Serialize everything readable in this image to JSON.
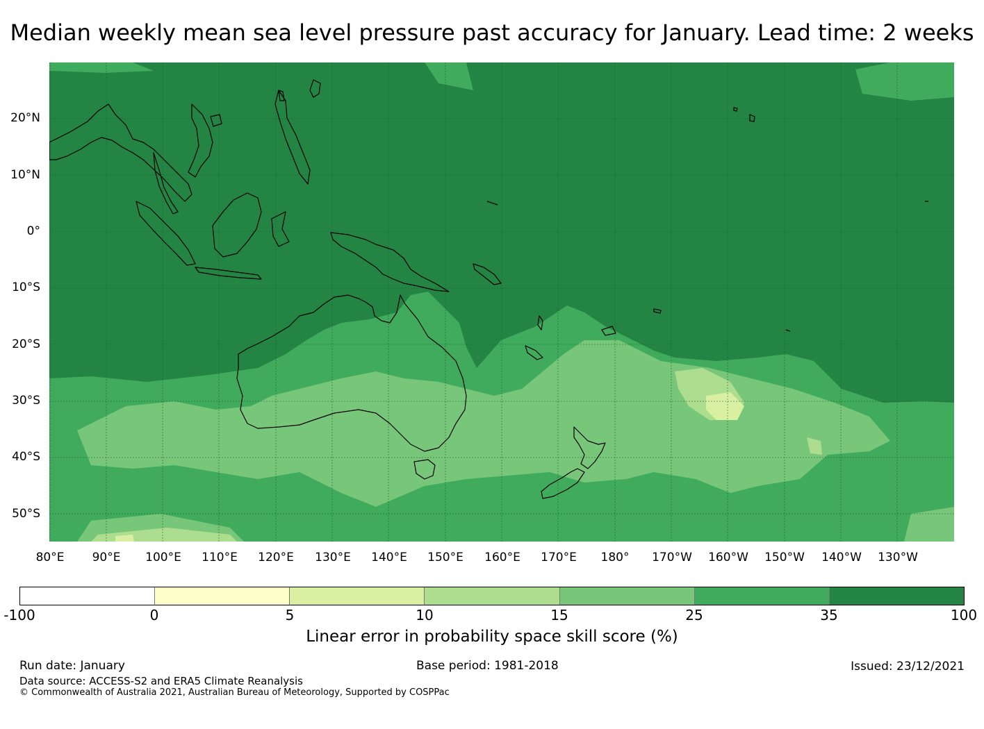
{
  "title": "Median weekly mean sea level pressure past accuracy for January. Lead time: 2 weeks",
  "map": {
    "region": "Western and Southern Pacific",
    "lat_labels": [
      "20°N",
      "10°N",
      "0°",
      "10°S",
      "20°S",
      "30°S",
      "40°S",
      "50°S"
    ],
    "lon_labels": [
      "80°E",
      "90°E",
      "100°E",
      "110°E",
      "120°E",
      "130°E",
      "140°E",
      "150°E",
      "160°E",
      "170°E",
      "180°",
      "170°W",
      "160°W",
      "150°W",
      "140°W",
      "130°W"
    ],
    "palette": {
      "band_0_5": "#ffffcc",
      "band_5_10": "#d9f0a3",
      "band_10_15": "#addd8e",
      "band_15_25": "#78c679",
      "band_25_35": "#41ab5d",
      "band_35_100": "#238443",
      "coastline": "#000000",
      "gridline": "#1a5c2e"
    }
  },
  "colorbar": {
    "ticks": [
      "-100",
      "0",
      "5",
      "10",
      "15",
      "25",
      "35",
      "100"
    ],
    "colors": [
      "#ffffff",
      "#ffffcc",
      "#d9f0a3",
      "#addd8e",
      "#78c679",
      "#41ab5d",
      "#238443"
    ],
    "label": "Linear error in probability space skill score (%)"
  },
  "footer": {
    "run_date": "Run date: January",
    "base_period": "Base period: 1981-2018",
    "issued": "Issued: 23/12/2021",
    "data_source": "Data source: ACCESS-S2 and ERA5 Climate Reanalysis",
    "copyright": "© Commonwealth of Australia 2021, Australian Bureau of Meteorology, Supported by COSPPac"
  }
}
